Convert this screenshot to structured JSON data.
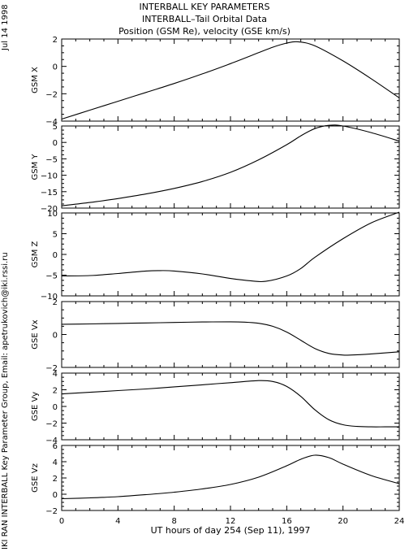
{
  "header": {
    "title_lines": [
      "INTERBALL KEY PARAMETERS",
      "INTERBALL–Tail Orbital Data",
      "Position (GSM Re), velocity (GSE km/s)"
    ],
    "date": "Jul 14 1998",
    "credit": "IKI RAN INTERBALL Key Parameter Group, Email: apetrukovich@iki.rssi.ru"
  },
  "chart_data": {
    "type": "line",
    "xlabel": "UT hours of day 254 (Sep 11), 1997",
    "xlim": [
      0,
      24
    ],
    "xticks": [
      0,
      4,
      8,
      12,
      16,
      20,
      24
    ],
    "grid": false,
    "panels": [
      {
        "ylabel": "GSM X",
        "ylim": [
          -4,
          2
        ],
        "yticks": [
          -4,
          -2,
          0,
          2
        ],
        "x": [
          0,
          2,
          4,
          6,
          8,
          10,
          12,
          14,
          15,
          16,
          16.8,
          18,
          20,
          22,
          24
        ],
        "y": [
          -3.85,
          -3.2,
          -2.55,
          -1.9,
          -1.25,
          -0.55,
          0.2,
          1.0,
          1.4,
          1.7,
          1.8,
          1.5,
          0.4,
          -0.9,
          -2.3
        ]
      },
      {
        "ylabel": "GSM Y",
        "ylim": [
          -20,
          5
        ],
        "yticks": [
          -20,
          -15,
          -10,
          -5,
          0,
          5
        ],
        "x": [
          0,
          2,
          4,
          6,
          8,
          10,
          12,
          14,
          16,
          17,
          18,
          19,
          20,
          22,
          24
        ],
        "y": [
          -19.3,
          -18.3,
          -17.1,
          -15.7,
          -14.0,
          -11.9,
          -9.1,
          -5.3,
          -0.7,
          2.0,
          4.2,
          5.2,
          5.0,
          3.0,
          0.4
        ]
      },
      {
        "ylabel": "GSM Z",
        "ylim": [
          -10,
          10
        ],
        "yticks": [
          -10,
          -5,
          0,
          5,
          10
        ],
        "x": [
          0,
          2,
          4,
          6,
          7,
          8,
          10,
          12,
          13.5,
          14.5,
          16,
          17,
          18,
          20,
          22,
          24
        ],
        "y": [
          -5.2,
          -5.1,
          -4.6,
          -4.0,
          -3.9,
          -4.0,
          -4.7,
          -5.8,
          -6.4,
          -6.5,
          -5.2,
          -3.4,
          -0.7,
          3.8,
          7.6,
          10.2
        ]
      },
      {
        "ylabel": "GSE Vx",
        "ylim": [
          -2,
          2
        ],
        "yticks": [
          -2,
          0,
          2
        ],
        "x": [
          0,
          2,
          4,
          6,
          8,
          10,
          12,
          13,
          14,
          15,
          16,
          17,
          18,
          19,
          20,
          20.5,
          22,
          24
        ],
        "y": [
          0.62,
          0.64,
          0.67,
          0.7,
          0.73,
          0.76,
          0.77,
          0.75,
          0.68,
          0.5,
          0.15,
          -0.35,
          -0.85,
          -1.15,
          -1.25,
          -1.25,
          -1.18,
          -1.05
        ]
      },
      {
        "ylabel": "GSE Vy",
        "ylim": [
          -4,
          4
        ],
        "yticks": [
          -4,
          -2,
          0,
          2,
          4
        ],
        "x": [
          0,
          2,
          4,
          6,
          8,
          10,
          12,
          14,
          15,
          16,
          17,
          18,
          19,
          20,
          21,
          22,
          23,
          24
        ],
        "y": [
          1.5,
          1.7,
          1.9,
          2.1,
          2.35,
          2.6,
          2.85,
          3.1,
          3.0,
          2.4,
          1.2,
          -0.4,
          -1.6,
          -2.2,
          -2.4,
          -2.45,
          -2.45,
          -2.45
        ]
      },
      {
        "ylabel": "GSE Vz",
        "ylim": [
          -2,
          6
        ],
        "yticks": [
          -2,
          0,
          2,
          4,
          6
        ],
        "x": [
          0,
          2,
          4,
          6,
          8,
          10,
          12,
          14,
          16,
          17,
          18,
          19,
          20,
          22,
          24
        ],
        "y": [
          -0.55,
          -0.45,
          -0.3,
          -0.05,
          0.25,
          0.65,
          1.2,
          2.1,
          3.5,
          4.3,
          4.8,
          4.5,
          3.7,
          2.3,
          1.3
        ]
      }
    ]
  }
}
